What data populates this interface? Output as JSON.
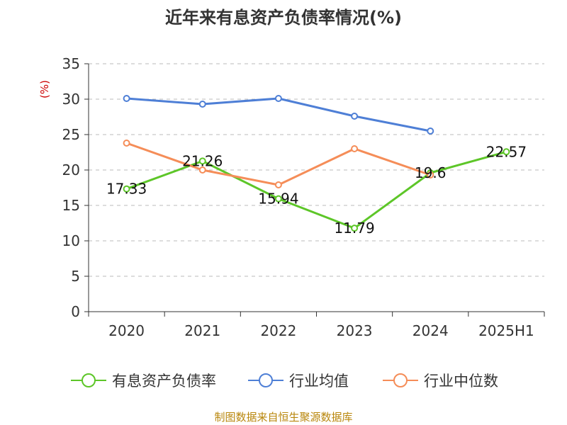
{
  "chart_data": {
    "type": "line",
    "title": "近年来有息资产负债率情况(%)",
    "ylabel": "(%)",
    "xlabel": "",
    "categories": [
      "2020",
      "2021",
      "2022",
      "2023",
      "2024",
      "2025H1"
    ],
    "ylim": [
      0,
      35
    ],
    "yticks": [
      0,
      5,
      10,
      15,
      20,
      25,
      30,
      35
    ],
    "grid": true,
    "legend_position": "bottom",
    "series": [
      {
        "name": "有息资产负债率",
        "color": "#5dc628",
        "values": [
          17.33,
          21.26,
          15.94,
          11.79,
          19.6,
          22.57
        ],
        "labels": [
          "17.33",
          "21.26",
          "15.94",
          "11.79",
          "19.6",
          "22.57"
        ]
      },
      {
        "name": "行业均值",
        "color": "#4e7fd6",
        "values": [
          30.1,
          29.3,
          30.1,
          27.6,
          25.5,
          null
        ]
      },
      {
        "name": "行业中位数",
        "color": "#f58d58",
        "values": [
          23.8,
          20.0,
          17.9,
          23.0,
          19.3,
          null
        ]
      }
    ]
  },
  "source_text": "制图数据来自恒生聚源数据库"
}
